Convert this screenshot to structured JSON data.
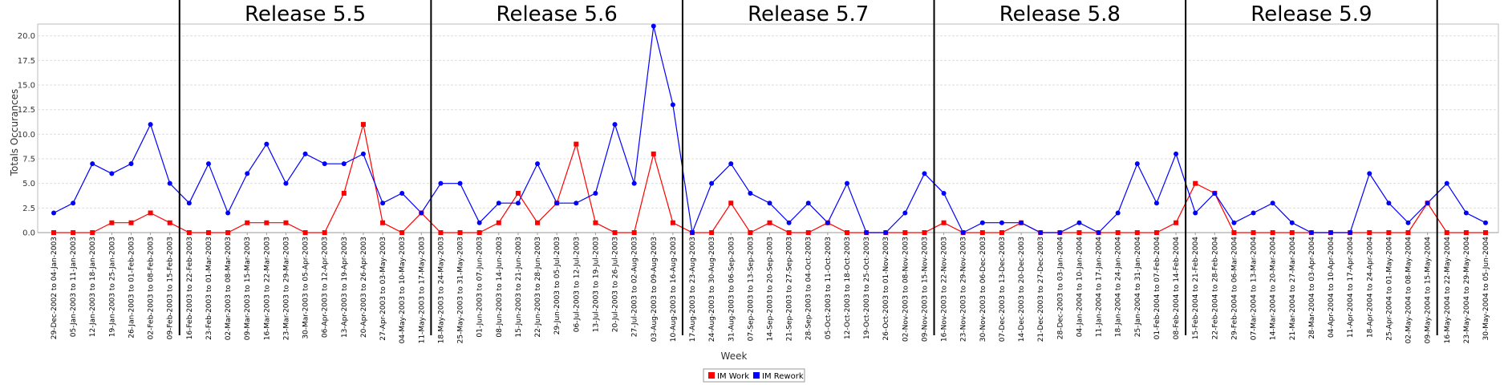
{
  "chart_data": {
    "type": "line",
    "title": "",
    "xlabel": "Week",
    "ylabel": "Totals Occurances",
    "ylim": [
      0,
      21.2
    ],
    "yticks": [
      "0.0",
      "2.5",
      "5.0",
      "7.5",
      "10.0",
      "12.5",
      "15.0",
      "17.5",
      "20.0"
    ],
    "grid": "horizontal",
    "legend_position": "bottom-center",
    "categories": [
      "29-Dec-2002 to 04-Jan-2003",
      "05-Jan-2003 to 11-Jan-2003",
      "12-Jan-2003 to 18-Jan-2003",
      "19-Jan-2003 to 25-Jan-2003",
      "26-Jan-2003 to 01-Feb-2003",
      "02-Feb-2003 to 08-Feb-2003",
      "09-Feb-2003 to 15-Feb-2003",
      "16-Feb-2003 to 22-Feb-2003",
      "23-Feb-2003 to 01-Mar-2003",
      "02-Mar-2003 to 08-Mar-2003",
      "09-Mar-2003 to 15-Mar-2003",
      "16-Mar-2003 to 22-Mar-2003",
      "23-Mar-2003 to 29-Mar-2003",
      "30-Mar-2003 to 05-Apr-2003",
      "06-Apr-2003 to 12-Apr-2003",
      "13-Apr-2003 to 19-Apr-2003",
      "20-Apr-2003 to 26-Apr-2003",
      "27-Apr-2003 to 03-May-2003",
      "04-May-2003 to 10-May-2003",
      "11-May-2003 to 17-May-2003",
      "18-May-2003 to 24-May-2003",
      "25-May-2003 to 31-May-2003",
      "01-Jun-2003 to 07-Jun-2003",
      "08-Jun-2003 to 14-Jun-2003",
      "15-Jun-2003 to 21-Jun-2003",
      "22-Jun-2003 to 28-Jun-2003",
      "29-Jun-2003 to 05-Jul-2003",
      "06-Jul-2003 to 12-Jul-2003",
      "13-Jul-2003 to 19-Jul-2003",
      "20-Jul-2003 to 26-Jul-2003",
      "27-Jul-2003 to 02-Aug-2003",
      "03-Aug-2003 to 09-Aug-2003",
      "10-Aug-2003 to 16-Aug-2003",
      "17-Aug-2003 to 23-Aug-2003",
      "24-Aug-2003 to 30-Aug-2003",
      "31-Aug-2003 to 06-Sep-2003",
      "07-Sep-2003 to 13-Sep-2003",
      "14-Sep-2003 to 20-Sep-2003",
      "21-Sep-2003 to 27-Sep-2003",
      "28-Sep-2003 to 04-Oct-2003",
      "05-Oct-2003 to 11-Oct-2003",
      "12-Oct-2003 to 18-Oct-2003",
      "19-Oct-2003 to 25-Oct-2003",
      "26-Oct-2003 to 01-Nov-2003",
      "02-Nov-2003 to 08-Nov-2003",
      "09-Nov-2003 to 15-Nov-2003",
      "16-Nov-2003 to 22-Nov-2003",
      "23-Nov-2003 to 29-Nov-2003",
      "30-Nov-2003 to 06-Dec-2003",
      "07-Dec-2003 to 13-Dec-2003",
      "14-Dec-2003 to 20-Dec-2003",
      "21-Dec-2003 to 27-Dec-2003",
      "28-Dec-2003 to 03-Jan-2004",
      "04-Jan-2004 to 10-Jan-2004",
      "11-Jan-2004 to 17-Jan-2004",
      "18-Jan-2004 to 24-Jan-2004",
      "25-Jan-2004 to 31-Jan-2004",
      "01-Feb-2004 to 07-Feb-2004",
      "08-Feb-2004 to 14-Feb-2004",
      "15-Feb-2004 to 21-Feb-2004",
      "22-Feb-2004 to 28-Feb-2004",
      "29-Feb-2004 to 06-Mar-2004",
      "07-Mar-2004 to 13-Mar-2004",
      "14-Mar-2004 to 20-Mar-2004",
      "21-Mar-2004 to 27-Mar-2004",
      "28-Mar-2004 to 03-Apr-2004",
      "04-Apr-2004 to 10-Apr-2004",
      "11-Apr-2004 to 17-Apr-2004",
      "18-Apr-2004 to 24-Apr-2004",
      "25-Apr-2004 to 01-May-2004",
      "02-May-2004 to 08-May-2004",
      "09-May-2004 to 15-May-2004",
      "16-May-2004 to 22-May-2004",
      "23-May-2004 to 29-May-2004",
      "30-May-2004 to 05-Jun-2004"
    ],
    "series": [
      {
        "name": "IM Work",
        "color": "#ff0000",
        "marker": "square",
        "values": [
          0,
          0,
          0,
          1,
          1,
          2,
          1,
          0,
          0,
          0,
          1,
          1,
          1,
          0,
          0,
          4,
          11,
          1,
          0,
          2,
          0,
          0,
          0,
          1,
          4,
          1,
          3,
          9,
          1,
          0,
          0,
          8,
          1,
          0,
          0,
          3,
          0,
          1,
          0,
          0,
          1,
          0,
          0,
          0,
          0,
          0,
          1,
          0,
          0,
          0,
          1,
          0,
          0,
          0,
          0,
          0,
          0,
          0,
          1,
          5,
          4,
          0,
          0,
          0,
          0,
          0,
          0,
          0,
          0,
          0,
          0,
          3,
          0,
          0,
          0
        ]
      },
      {
        "name": "IM Rework",
        "color": "#0000ff",
        "marker": "circle",
        "values": [
          2,
          3,
          7,
          6,
          7,
          11,
          5,
          3,
          7,
          2,
          6,
          9,
          5,
          8,
          7,
          7,
          8,
          3,
          4,
          2,
          5,
          5,
          1,
          3,
          3,
          7,
          3,
          3,
          4,
          11,
          5,
          21,
          13,
          0,
          5,
          7,
          4,
          3,
          1,
          3,
          1,
          5,
          0,
          0,
          2,
          6,
          4,
          0,
          1,
          1,
          1,
          0,
          0,
          1,
          0,
          2,
          7,
          3,
          8,
          2,
          4,
          1,
          2,
          3,
          1,
          0,
          0,
          0,
          6,
          3,
          1,
          3,
          5,
          2,
          1
        ]
      }
    ],
    "releases": [
      {
        "label": "",
        "start": 0,
        "end": 6
      },
      {
        "label": "Release 5.5",
        "start": 7,
        "end": 19
      },
      {
        "label": "Release 5.6",
        "start": 20,
        "end": 32
      },
      {
        "label": "Release 5.7",
        "start": 33,
        "end": 45
      },
      {
        "label": "Release 5.8",
        "start": 46,
        "end": 58
      },
      {
        "label": "Release 5.9",
        "start": 59,
        "end": 71
      },
      {
        "label": "",
        "start": 72,
        "end": 74
      }
    ]
  }
}
